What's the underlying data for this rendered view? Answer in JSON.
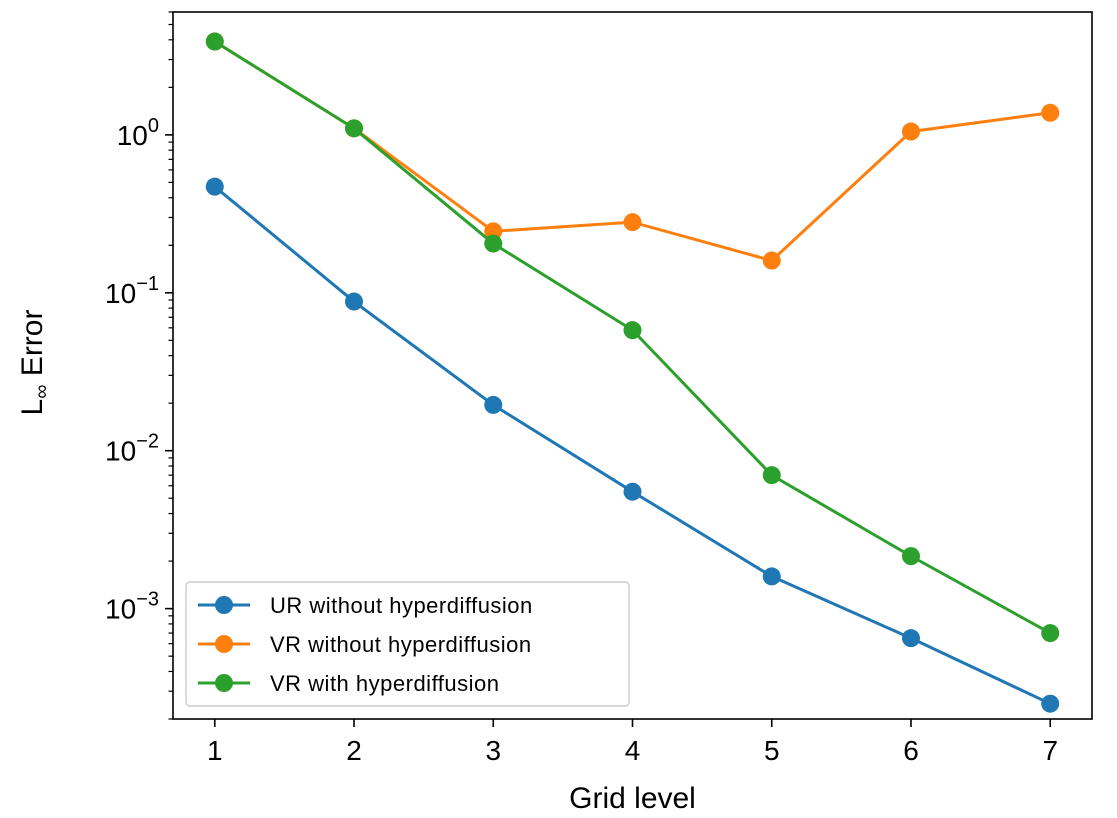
{
  "chart_data": {
    "type": "line",
    "xscale": "linear",
    "yscale": "log",
    "xlim": [
      0.7,
      7.3
    ],
    "ylim": [
      0.0002,
      6.0
    ],
    "x": [
      1,
      2,
      3,
      4,
      5,
      6,
      7
    ],
    "x_ticks": [
      "1",
      "2",
      "3",
      "4",
      "5",
      "6",
      "7"
    ],
    "y_ticks": [
      {
        "value": 0.001,
        "base": "10",
        "exp": "−3"
      },
      {
        "value": 0.01,
        "base": "10",
        "exp": "−2"
      },
      {
        "value": 0.1,
        "base": "10",
        "exp": "−1"
      },
      {
        "value": 1,
        "base": "10",
        "exp": "0"
      }
    ],
    "xlabel": "Grid level",
    "ylabel_main": "L",
    "ylabel_sub": "∞",
    "ylabel_rest": " Error",
    "grid": false,
    "legend_position": "lower-left",
    "series": [
      {
        "name": "UR without hyperdiffusion",
        "color": "#1f77b4",
        "values": [
          0.47,
          0.088,
          0.0195,
          0.0055,
          0.0016,
          0.00065,
          0.00025
        ]
      },
      {
        "name": "VR without hyperdiffusion",
        "color": "#ff7f0e",
        "values": [
          3.9,
          1.1,
          0.245,
          0.28,
          0.16,
          1.05,
          1.38
        ]
      },
      {
        "name": "VR with hyperdiffusion",
        "color": "#2ca02c",
        "values": [
          3.9,
          1.1,
          0.205,
          0.058,
          0.007,
          0.00215,
          0.0007
        ]
      }
    ]
  }
}
